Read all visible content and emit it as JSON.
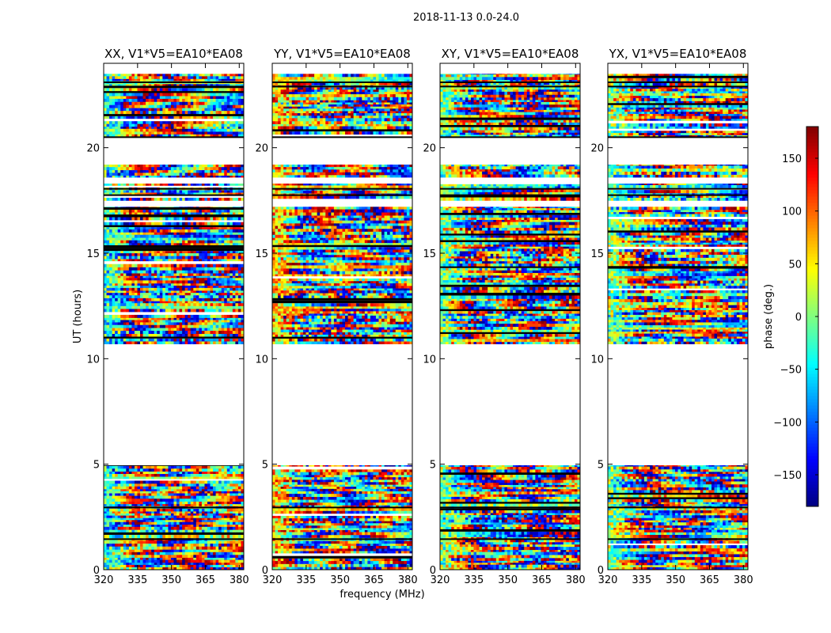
{
  "chart_data": {
    "type": "heatmap",
    "suptitle": "2018-11-13 0.0-24.0",
    "xlabel": "frequency (MHz)",
    "ylabel": "UT (hours)",
    "xlim": [
      320,
      382
    ],
    "ylim": [
      0,
      24
    ],
    "xticks": [
      320,
      335,
      350,
      365,
      380
    ],
    "yticks": [
      0,
      5,
      10,
      15,
      20
    ],
    "panels": [
      {
        "title": "XX, V1*V5=EA10*EA08",
        "baseline_phase": -30
      },
      {
        "title": "YY, V1*V5=EA10*EA08",
        "baseline_phase": 60
      },
      {
        "title": "XY, V1*V5=EA10*EA08",
        "baseline_phase": 0
      },
      {
        "title": "YX, V1*V5=EA10*EA08",
        "baseline_phase": 0
      }
    ],
    "data_ranges_hours": [
      [
        0.0,
        4.95
      ],
      [
        10.7,
        17.2
      ],
      [
        17.5,
        18.3
      ],
      [
        18.6,
        19.2
      ],
      [
        20.5,
        23.5
      ]
    ],
    "blank_ranges_hours": [
      [
        4.95,
        10.7
      ],
      [
        19.2,
        20.5
      ]
    ],
    "colorbar": {
      "label": "phase (deg.)",
      "min": -180,
      "max": 180,
      "ticks": [
        -150,
        -100,
        -50,
        0,
        50,
        100,
        150
      ],
      "colormap": "jet"
    }
  }
}
